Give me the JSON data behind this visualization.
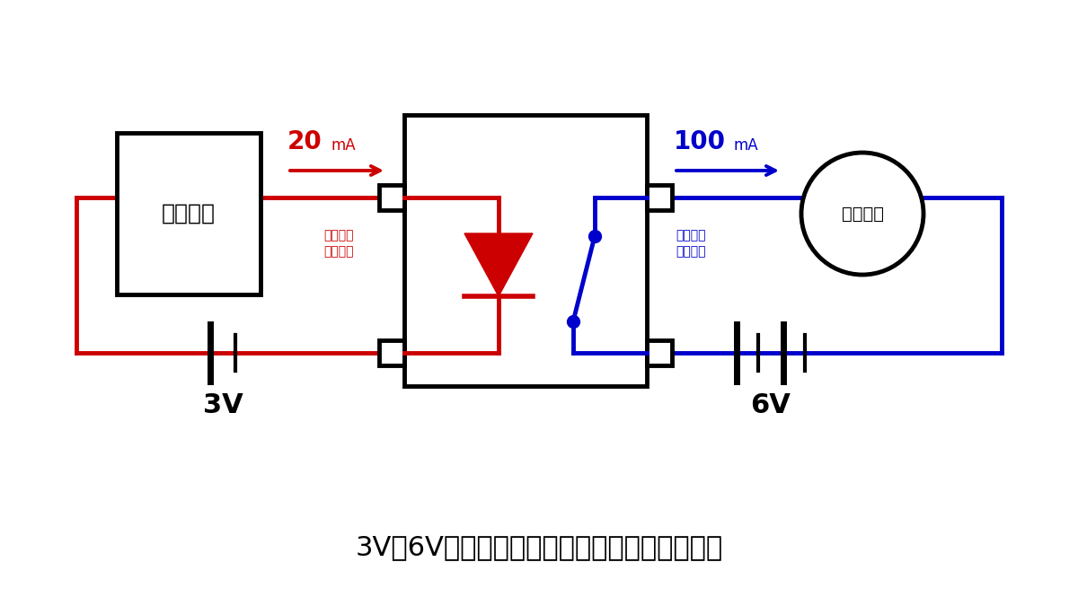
{
  "bg_color": "#ffffff",
  "title_text": "3Vと6V、別々の電源を持つ回路を構成できる",
  "title_fontsize": 22,
  "red_color": "#cc0000",
  "blue_color": "#0000cc",
  "black_color": "#000000",
  "microcon_label": "マイコン",
  "motor_label": "モーター",
  "battery_3v_label": "3V",
  "battery_6v_label": "6V",
  "signal_label": "マイコン\n出力信号",
  "motor_current_label": "モーター\n消費電流",
  "current_20_big": "20",
  "current_20_small": "mA",
  "current_100_big": "100",
  "current_100_small": "mA"
}
